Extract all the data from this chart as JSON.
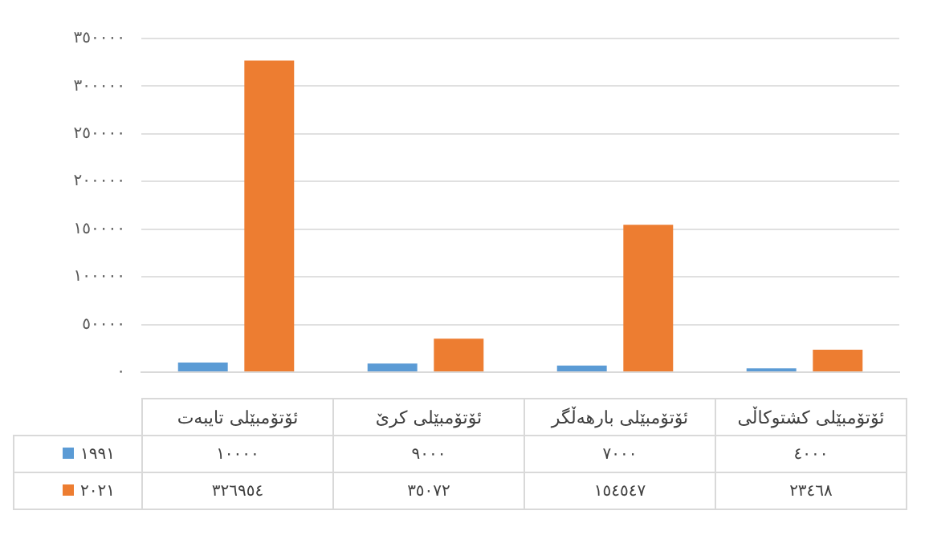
{
  "chart_data": {
    "type": "bar",
    "categories": [
      "ئۆتۆمبێلی تایبەت",
      "ئۆتۆمبێلی کرێ",
      "ئۆتۆمبێلی بارهەڵگر",
      "ئۆتۆمبێلی کشتوکاڵی"
    ],
    "series": [
      {
        "name": "١٩٩١",
        "color": "#5b9bd5",
        "values": [
          10000,
          9000,
          7000,
          4000
        ],
        "value_labels": [
          "١٠٠٠٠",
          "٩٠٠٠",
          "٧٠٠٠",
          "٤٠٠٠"
        ]
      },
      {
        "name": "٢٠٢١",
        "color": "#ed7d31",
        "values": [
          326954,
          35072,
          154547,
          23468
        ],
        "value_labels": [
          "٣٢٦٩٥٤",
          "٣٥٠٧٢",
          "١٥٤٥٤٧",
          "٢٣٤٦٨"
        ]
      }
    ],
    "ylim": [
      0,
      350000
    ],
    "yticks": [
      {
        "value": 0,
        "label": "٠"
      },
      {
        "value": 50000,
        "label": "٥٠٠٠٠"
      },
      {
        "value": 100000,
        "label": "١٠٠٠٠٠"
      },
      {
        "value": 150000,
        "label": "١٥٠٠٠٠"
      },
      {
        "value": 200000,
        "label": "٢٠٠٠٠٠"
      },
      {
        "value": 250000,
        "label": "٢٥٠٠٠٠"
      },
      {
        "value": 300000,
        "label": "٣٠٠٠٠٠"
      },
      {
        "value": 350000,
        "label": "٣٥٠٠٠٠"
      }
    ],
    "grid": "y",
    "legend": "bottom"
  }
}
